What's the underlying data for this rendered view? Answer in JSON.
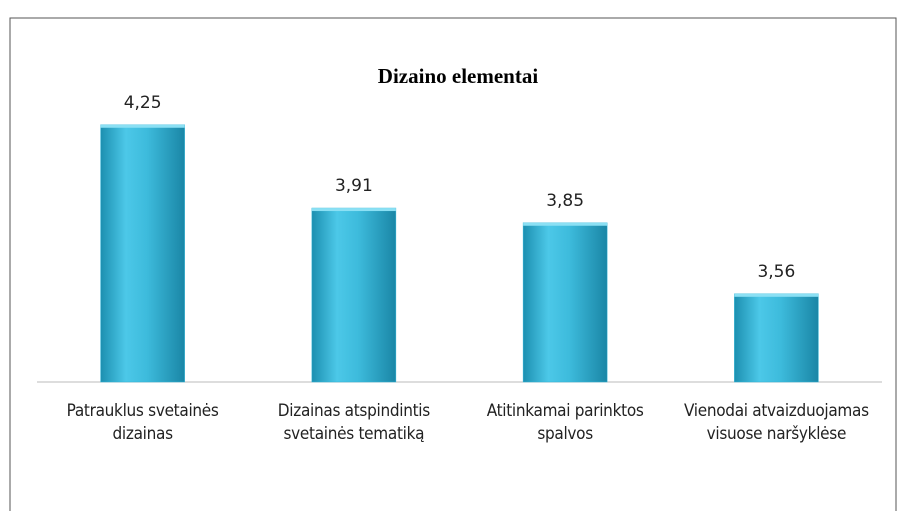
{
  "chart_data": {
    "type": "bar",
    "title": "Dizaino elementai",
    "categories": [
      "Patrauklus svetainės dizainas",
      "Dizainas atspindintis svetainės tematiką",
      "Atitinkamai parinktos spalvos",
      "Vienodai atvaizduojamas visuose naršyklėse"
    ],
    "values": [
      4.25,
      3.91,
      3.85,
      3.56
    ],
    "value_labels": [
      "4,25",
      "3,91",
      "3,85",
      "3,56"
    ],
    "color": "#2fb3d6",
    "ylim": [
      3.2,
      4.4
    ]
  }
}
